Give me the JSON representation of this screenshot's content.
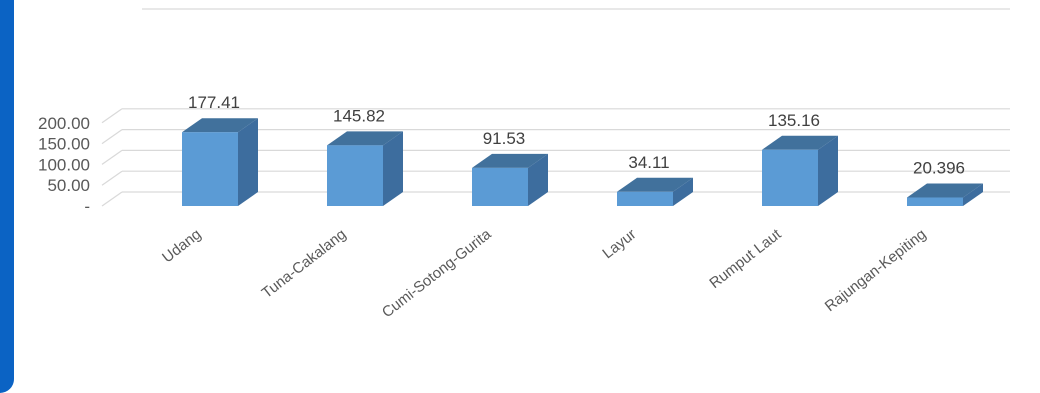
{
  "chart_data": {
    "type": "bar",
    "title": "",
    "xlabel": "",
    "ylabel": "",
    "categories": [
      "Udang",
      "Tuna-Cakalang",
      "Cumi-Sotong-Gurita",
      "Layur",
      "Rumput Laut",
      "Rajungan-Kepiting"
    ],
    "values": [
      177.41,
      145.82,
      91.53,
      34.11,
      135.16,
      20.396
    ],
    "data_labels": [
      "177.41",
      "145.82",
      "91.53",
      "34.11",
      "135.16",
      "20.396"
    ],
    "y_ticks": [
      "-",
      "50.00",
      "100.00",
      "150.00",
      "200.00"
    ],
    "ylim": [
      0,
      200
    ],
    "grid": true,
    "legend": "none",
    "style": "3d-bar"
  },
  "colors": {
    "bar_front": "#5b9bd5",
    "bar_side": "#3d6d9e",
    "bar_top": "#41719c",
    "grid": "#d9d9d9",
    "accent": "#0b63c4"
  }
}
